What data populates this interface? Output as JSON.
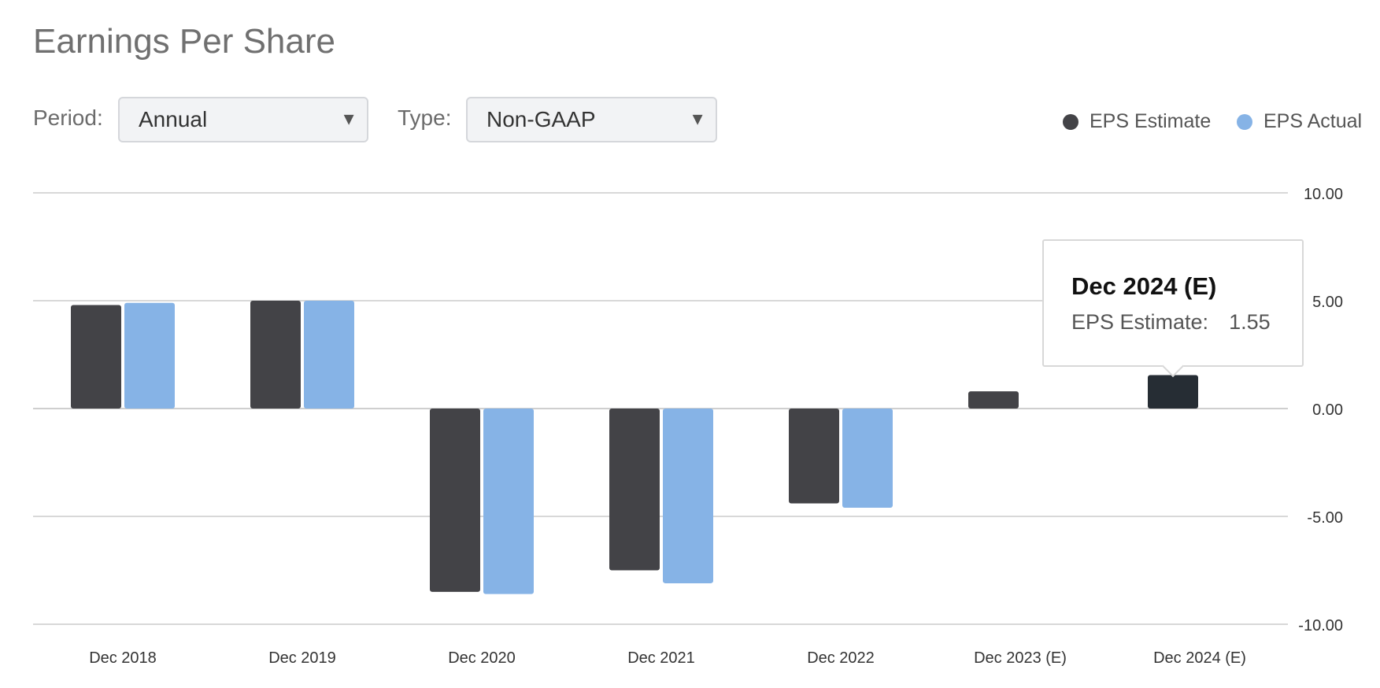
{
  "header": {
    "title": "Earnings Per Share"
  },
  "controls": {
    "period_label": "Period:",
    "period_value": "Annual",
    "type_label": "Type:",
    "type_value": "Non-GAAP"
  },
  "legend": [
    {
      "label": "EPS Estimate",
      "color": "#434347"
    },
    {
      "label": "EPS Actual",
      "color": "#86b3e6"
    }
  ],
  "tooltip": {
    "title": "Dec 2024 (E)",
    "label": "EPS Estimate:",
    "value": "1.55"
  },
  "chart_data": {
    "type": "bar",
    "title": "Earnings Per Share",
    "categories": [
      "Dec 2018",
      "Dec 2019",
      "Dec 2020",
      "Dec 2021",
      "Dec 2022",
      "Dec 2023 (E)",
      "Dec 2024 (E)"
    ],
    "series": [
      {
        "name": "EPS Estimate",
        "color": "#434347",
        "values": [
          4.8,
          5.0,
          -8.5,
          -7.5,
          -4.4,
          0.8,
          1.55
        ]
      },
      {
        "name": "EPS Actual",
        "color": "#86b3e6",
        "values": [
          4.9,
          5.0,
          -8.6,
          -8.1,
          -4.6,
          null,
          null
        ]
      }
    ],
    "highlight_color": "#262d34",
    "highlight": {
      "series": 0,
      "index": 6
    },
    "ylim": [
      -10,
      10
    ],
    "yticks": [
      10,
      5,
      0,
      -5,
      -10
    ],
    "ytick_labels": [
      "10.00",
      "5.00",
      "0.00",
      "-5.00",
      "-10.00"
    ],
    "grid": true,
    "y_axis_side": "right",
    "legend_position": "top-right"
  }
}
